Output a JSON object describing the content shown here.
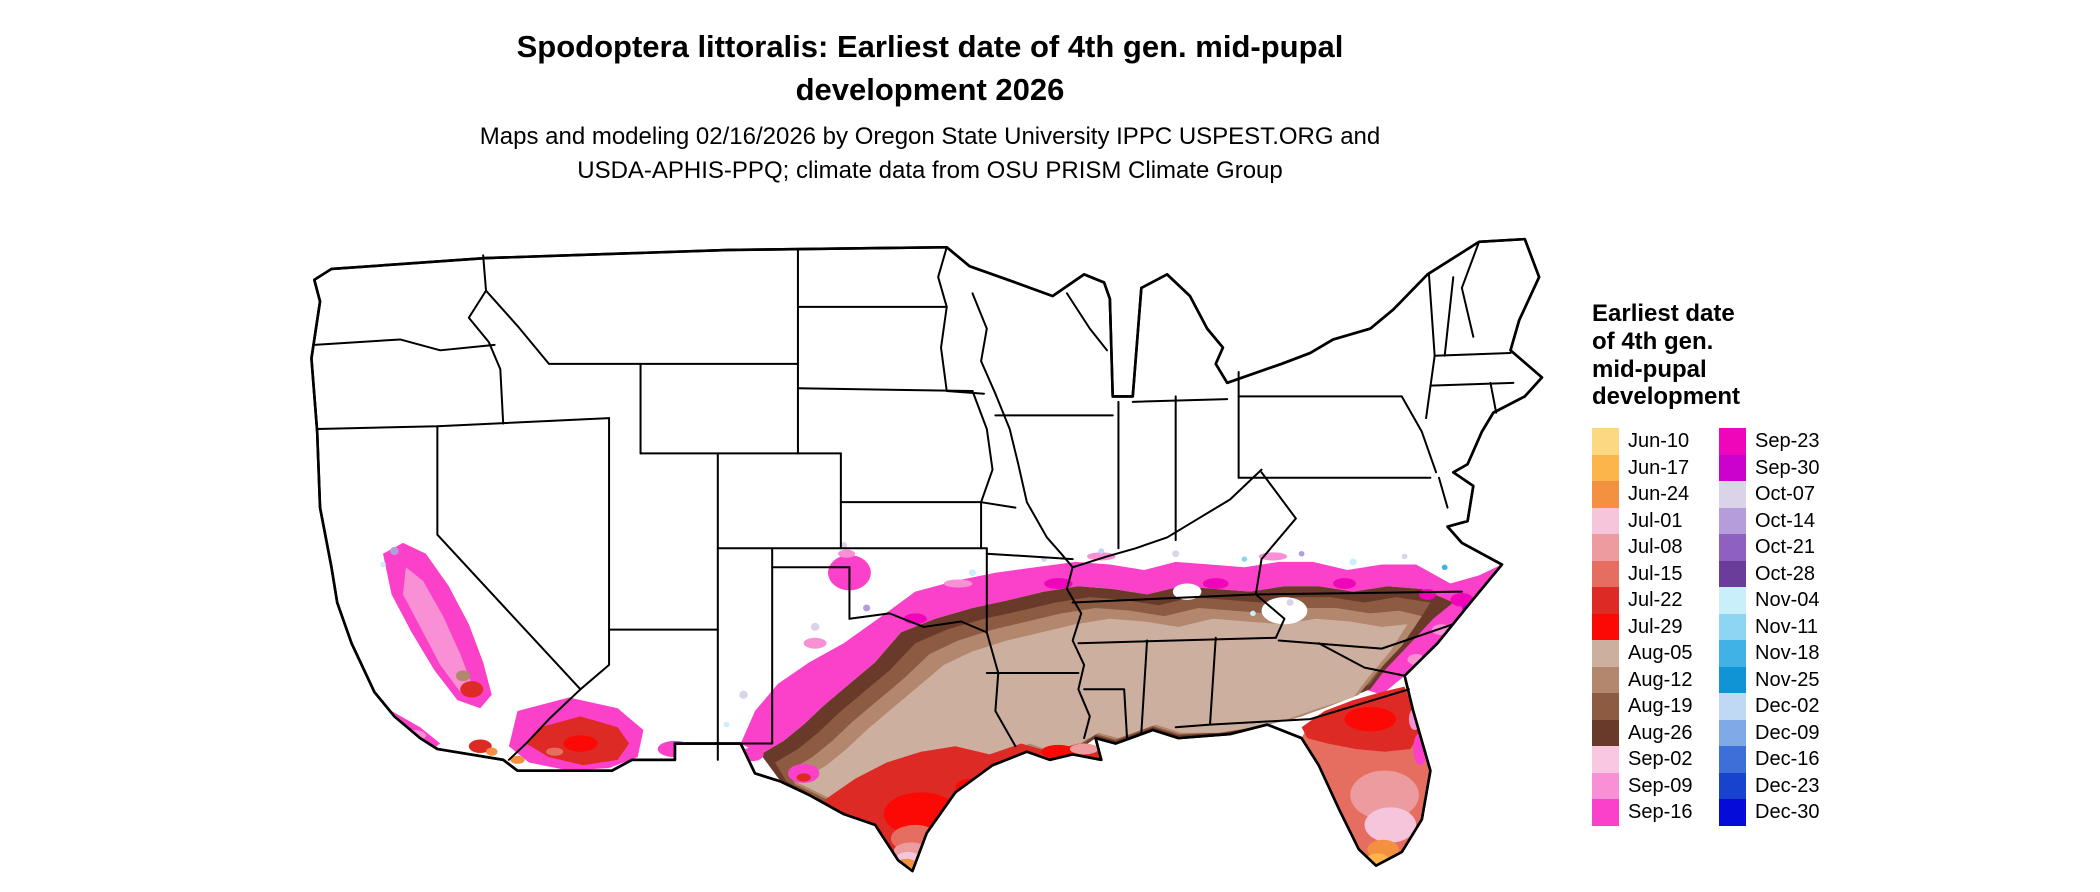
{
  "title": {
    "lines": [
      "Spodoptera littoralis: Earliest date of 4th gen. mid-pupal",
      "development 2026"
    ]
  },
  "subtitle": {
    "lines": [
      "Maps and modeling 02/16/2026 by Oregon State University IPPC USPEST.ORG and",
      "USDA-APHIS-PPQ; climate data from OSU PRISM Climate Group"
    ]
  },
  "map": {
    "region": "Continental United States choropleth of earliest 4th generation mid-pupal development dates"
  },
  "legend": {
    "title_lines": [
      "Earliest date",
      "of 4th gen.",
      "mid-pupal",
      "development"
    ],
    "columns": [
      {
        "entries": [
          {
            "label": "Jun-10",
            "color": "#FDD882"
          },
          {
            "label": "Jun-17",
            "color": "#FBB54B"
          },
          {
            "label": "Jun-24",
            "color": "#F49140"
          },
          {
            "label": "Jul-01",
            "color": "#F5C6DB"
          },
          {
            "label": "Jul-08",
            "color": "#EC9C9E"
          },
          {
            "label": "Jul-15",
            "color": "#E66E60"
          },
          {
            "label": "Jul-22",
            "color": "#DE2A25"
          },
          {
            "label": "Jul-29",
            "color": "#FB0905"
          },
          {
            "label": "Aug-05",
            "color": "#CDAF9F"
          },
          {
            "label": "Aug-12",
            "color": "#B2876D"
          },
          {
            "label": "Aug-19",
            "color": "#8C5B41"
          },
          {
            "label": "Aug-26",
            "color": "#69392A"
          },
          {
            "label": "Sep-02",
            "color": "#FAC7E3"
          },
          {
            "label": "Sep-09",
            "color": "#F990D5"
          },
          {
            "label": "Sep-16",
            "color": "#FB41C9"
          }
        ]
      },
      {
        "entries": [
          {
            "label": "Sep-23",
            "color": "#EF06BB"
          },
          {
            "label": "Sep-30",
            "color": "#CB02CE"
          },
          {
            "label": "Oct-07",
            "color": "#DBD3E8"
          },
          {
            "label": "Oct-14",
            "color": "#B49DDA"
          },
          {
            "label": "Oct-21",
            "color": "#8E60C0"
          },
          {
            "label": "Oct-28",
            "color": "#6A3D9A"
          },
          {
            "label": "Nov-04",
            "color": "#C9F0FA"
          },
          {
            "label": "Nov-11",
            "color": "#8ED5F3"
          },
          {
            "label": "Nov-18",
            "color": "#41B2E5"
          },
          {
            "label": "Nov-25",
            "color": "#1094D6"
          },
          {
            "label": "Dec-02",
            "color": "#BFD9F4"
          },
          {
            "label": "Dec-09",
            "color": "#7FA9E7"
          },
          {
            "label": "Dec-16",
            "color": "#3E6FD9"
          },
          {
            "label": "Dec-23",
            "color": "#1843CC"
          },
          {
            "label": "Dec-30",
            "color": "#050CD9"
          }
        ]
      }
    ]
  }
}
